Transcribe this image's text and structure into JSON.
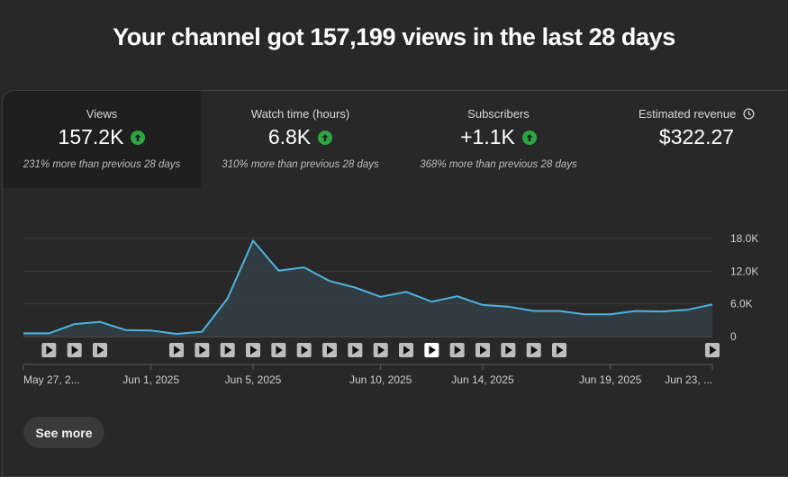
{
  "headline": "Your channel got 157,199 views in the last 28 days",
  "tabs": [
    {
      "label": "Views",
      "value": "157.2K",
      "sub": "231% more than previous 28 days",
      "trend": "up"
    },
    {
      "label": "Watch time (hours)",
      "value": "6.8K",
      "sub": "310% more than previous 28 days",
      "trend": "up"
    },
    {
      "label": "Subscribers",
      "value": "+1.1K",
      "sub": "368% more than previous 28 days",
      "trend": "up"
    },
    {
      "label": "Estimated revenue",
      "value": "$322.27",
      "sub": "",
      "trend": "none"
    }
  ],
  "colors": {
    "line": "#4fb3e0",
    "up": "#2ba640",
    "marker_active": "#ffffff",
    "marker": "#bdbdbd"
  },
  "icons": {
    "trend": "arrow-up-circle-icon",
    "revenue": "clock-icon",
    "marker": "play-icon"
  },
  "chart_data": {
    "type": "area",
    "series_name": "Views",
    "y": [
      600,
      600,
      2300,
      2700,
      1200,
      1100,
      500,
      900,
      7000,
      17600,
      12100,
      12700,
      10200,
      9000,
      7300,
      8200,
      6400,
      7400,
      5800,
      5500,
      4700,
      4700,
      4100,
      4100,
      4700,
      4600,
      4900,
      5900
    ],
    "ylim": [
      0,
      18000
    ],
    "yticks": [
      "18.0K",
      "12.0K",
      "6.0K",
      "0"
    ],
    "ytick_values": [
      18000,
      12000,
      6000,
      0
    ],
    "xlabels": [
      {
        "index": 0,
        "label": "May 27, 2..."
      },
      {
        "index": 5,
        "label": "Jun 1, 2025"
      },
      {
        "index": 9,
        "label": "Jun 5, 2025"
      },
      {
        "index": 14,
        "label": "Jun 10, 2025"
      },
      {
        "index": 18,
        "label": "Jun 14, 2025"
      },
      {
        "index": 23,
        "label": "Jun 19, 2025"
      },
      {
        "index": 27,
        "label": "Jun 23, ..."
      }
    ],
    "marker_days": [
      1,
      2,
      3,
      6,
      7,
      8,
      9,
      10,
      11,
      12,
      13,
      14,
      15,
      16,
      17,
      18,
      19,
      20,
      21,
      27
    ],
    "active_marker_day": 16,
    "grid": true,
    "legend": "none"
  },
  "see_more": "See more"
}
